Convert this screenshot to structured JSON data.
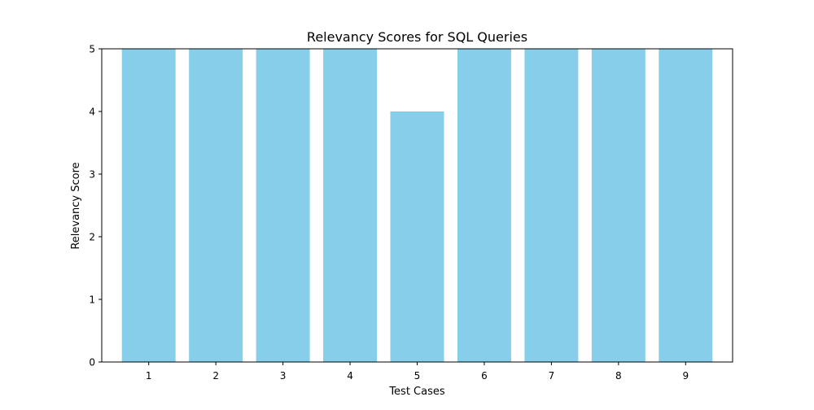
{
  "chart_data": {
    "type": "bar",
    "title": "Relevancy Scores for SQL Queries",
    "xlabel": "Test Cases",
    "ylabel": "Relevancy Score",
    "categories": [
      "1",
      "2",
      "3",
      "4",
      "5",
      "6",
      "7",
      "8",
      "9"
    ],
    "values": [
      5,
      5,
      5,
      5,
      4,
      5,
      5,
      5,
      5
    ],
    "ylim": [
      0,
      5
    ],
    "yticks": [
      0,
      1,
      2,
      3,
      4,
      5
    ],
    "grid": false,
    "bar_color": "#87ceeb"
  }
}
